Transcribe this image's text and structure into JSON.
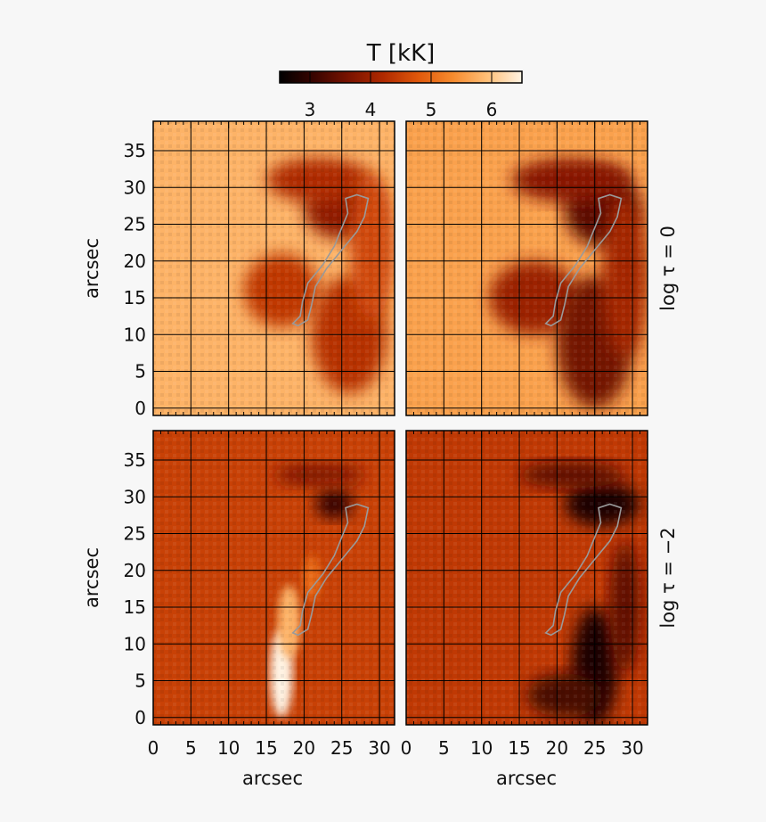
{
  "chart_data": {
    "type": "heatmap",
    "colorbar": {
      "title": "T [kK]",
      "ticks": [
        3,
        4,
        5,
        6
      ],
      "range": [
        2.5,
        6.5
      ],
      "colormap": "hot",
      "stops": [
        "#000000",
        "#3a0400",
        "#7a1300",
        "#b02a00",
        "#e0580b",
        "#f68b2e",
        "#ffbf78",
        "#fff3e3"
      ]
    },
    "xlabel": "arcsec",
    "ylabel": "arcsec",
    "xlim": [
      0,
      32
    ],
    "ylim": [
      -1,
      39
    ],
    "x_ticks": [
      0,
      5,
      10,
      15,
      20,
      25,
      30
    ],
    "y_ticks": [
      0,
      5,
      10,
      15,
      20,
      25,
      30,
      35
    ],
    "grid": true,
    "row_labels": [
      "log τ = 0",
      "log τ = −2"
    ],
    "contour": {
      "color": "#9a9a9a",
      "points": [
        [
          18.5,
          11.5
        ],
        [
          19.5,
          12.5
        ],
        [
          19.8,
          14.5
        ],
        [
          20.5,
          17.0
        ],
        [
          22.5,
          19.5
        ],
        [
          24.0,
          22.0
        ],
        [
          25.0,
          24.5
        ],
        [
          25.8,
          26.5
        ],
        [
          25.5,
          28.5
        ],
        [
          27.0,
          29.0
        ],
        [
          28.5,
          28.5
        ],
        [
          28.0,
          26.0
        ],
        [
          27.0,
          24.0
        ],
        [
          25.0,
          21.5
        ],
        [
          23.0,
          19.0
        ],
        [
          21.5,
          16.5
        ],
        [
          21.0,
          14.0
        ],
        [
          20.5,
          12.0
        ],
        [
          19.2,
          11.2
        ]
      ]
    },
    "panels": [
      {
        "name": "log tau 0, left",
        "background_T": 5.8,
        "features": [
          {
            "kind": "blob",
            "cx": 25,
            "cy": 27,
            "rx": 5,
            "ry": 4,
            "T": 3.9
          },
          {
            "kind": "blob",
            "cx": 22,
            "cy": 31,
            "rx": 7,
            "ry": 3,
            "T": 4.2
          },
          {
            "kind": "blob",
            "cx": 17,
            "cy": 16,
            "rx": 5,
            "ry": 5,
            "T": 4.4
          },
          {
            "kind": "blob",
            "cx": 26,
            "cy": 10,
            "rx": 5,
            "ry": 8,
            "T": 4.3
          },
          {
            "kind": "blob",
            "cx": 29,
            "cy": 22,
            "rx": 3,
            "ry": 10,
            "T": 4.6
          }
        ]
      },
      {
        "name": "log tau 0, right",
        "background_T": 5.6,
        "features": [
          {
            "kind": "blob",
            "cx": 26,
            "cy": 27,
            "rx": 5,
            "ry": 5,
            "T": 3.4
          },
          {
            "kind": "blob",
            "cx": 22,
            "cy": 31,
            "rx": 8,
            "ry": 3,
            "T": 3.8
          },
          {
            "kind": "blob",
            "cx": 17,
            "cy": 15,
            "rx": 6,
            "ry": 5,
            "T": 4.0
          },
          {
            "kind": "blob",
            "cx": 25,
            "cy": 9,
            "rx": 5,
            "ry": 9,
            "T": 3.6
          },
          {
            "kind": "blob",
            "cx": 29,
            "cy": 18,
            "rx": 3,
            "ry": 11,
            "T": 4.1
          }
        ]
      },
      {
        "name": "log tau -2, left",
        "background_T": 4.5,
        "features": [
          {
            "kind": "blob",
            "cx": 24,
            "cy": 29,
            "rx": 2.5,
            "ry": 2,
            "T": 3.0
          },
          {
            "kind": "blob",
            "cx": 22,
            "cy": 33,
            "rx": 6,
            "ry": 1.5,
            "T": 3.7
          },
          {
            "kind": "blob",
            "cx": 17,
            "cy": 6,
            "rx": 1.5,
            "ry": 6,
            "T": 6.5
          },
          {
            "kind": "blob",
            "cx": 18,
            "cy": 13,
            "rx": 1.5,
            "ry": 5,
            "T": 5.8
          },
          {
            "kind": "blob",
            "cx": 21,
            "cy": 19,
            "rx": 1.2,
            "ry": 3,
            "T": 5.0
          }
        ]
      },
      {
        "name": "log tau -2, right",
        "background_T": 4.4,
        "features": [
          {
            "kind": "blob",
            "cx": 26,
            "cy": 29,
            "rx": 5,
            "ry": 3,
            "T": 2.8
          },
          {
            "kind": "blob",
            "cx": 22,
            "cy": 33,
            "rx": 7,
            "ry": 1.8,
            "T": 3.4
          },
          {
            "kind": "blob",
            "cx": 25,
            "cy": 7,
            "rx": 3,
            "ry": 8,
            "T": 2.8
          },
          {
            "kind": "blob",
            "cx": 21,
            "cy": 3,
            "rx": 5,
            "ry": 3,
            "T": 3.2
          },
          {
            "kind": "blob",
            "cx": 29,
            "cy": 15,
            "rx": 2,
            "ry": 9,
            "T": 3.4
          }
        ]
      }
    ]
  }
}
